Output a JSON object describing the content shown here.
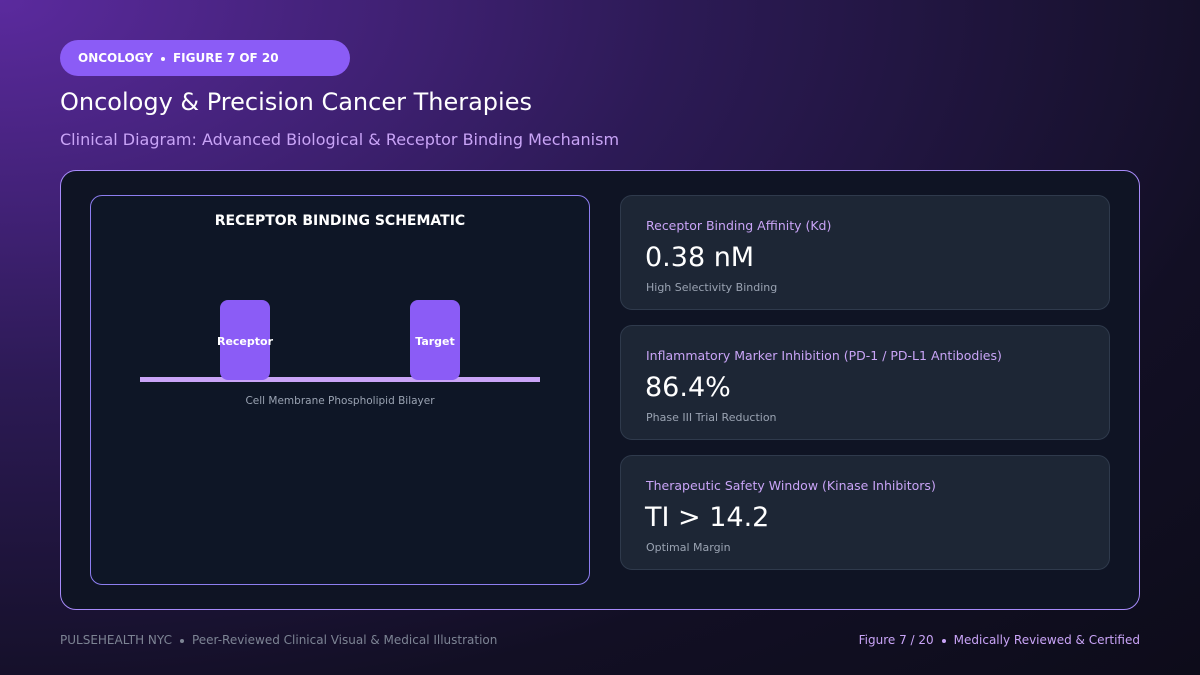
{
  "badge": {
    "section": "ONCOLOGY",
    "figure": "FIGURE 7 OF 20"
  },
  "header": {
    "title": "Oncology & Precision Cancer Therapies",
    "subtitle": "Clinical Diagram: Advanced Biological & Receptor Binding Mechanism"
  },
  "schematic": {
    "title": "RECEPTOR BINDING SCHEMATIC",
    "nodes": [
      {
        "label": "Receptor"
      },
      {
        "label": "Target"
      }
    ],
    "membrane_label": "Cell Membrane Phospholipid Bilayer"
  },
  "metrics": [
    {
      "label": "Receptor Binding Affinity (Kd)",
      "value": "0.38 nM",
      "note": "High Selectivity Binding"
    },
    {
      "label": "Inflammatory Marker Inhibition (PD-1 / PD-L1 Antibodies)",
      "value": "86.4%",
      "note": "Phase III Trial Reduction"
    },
    {
      "label": "Therapeutic Safety Window (Kinase Inhibitors)",
      "value": "TI > 14.2",
      "note": "Optimal Margin"
    }
  ],
  "footer": {
    "brand": "PULSEHEALTH NYC",
    "tagline": "Peer-Reviewed Clinical Visual & Medical Illustration",
    "page": "Figure 7 / 20",
    "certification": "Medically Reviewed & Certified"
  }
}
